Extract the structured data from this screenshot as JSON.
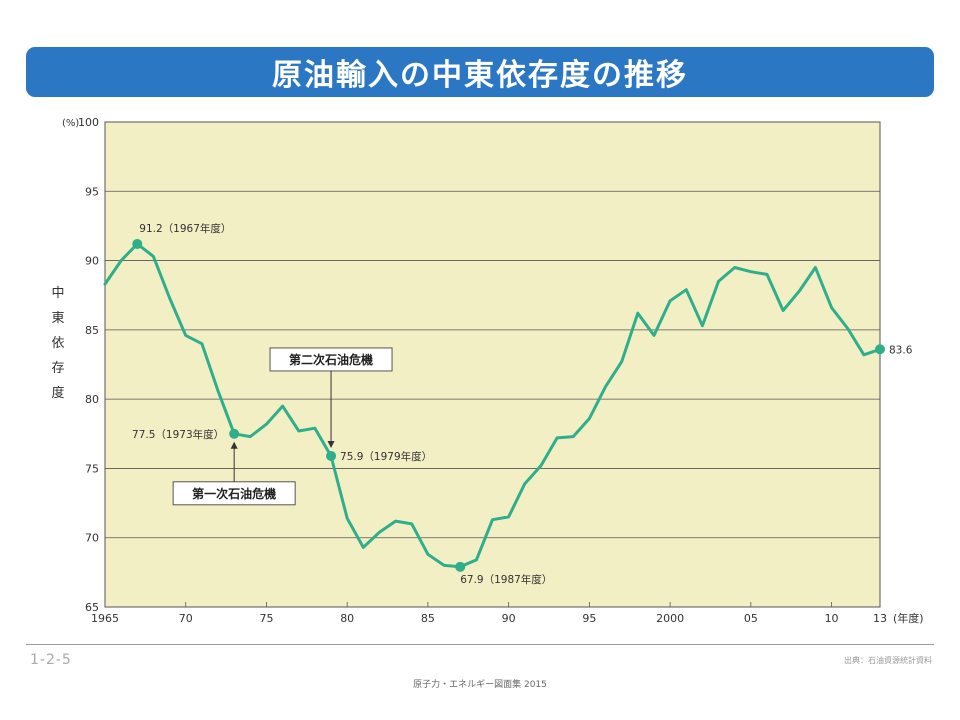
{
  "page": {
    "title": "原油輸入の中東依存度の推移",
    "figure_number": "1-2-5",
    "source_note": "出典：石油資源統計資料",
    "footer_caption": "原子力・エネルギー図面集 2015",
    "banner_color": "#2b77c4"
  },
  "chart_data": {
    "type": "line",
    "title": "原油輸入の中東依存度の推移",
    "ylabel": "中東依存度",
    "y_unit": "(%)",
    "x_unit": "(年度)",
    "ylim": [
      65,
      100
    ],
    "xlim": [
      1965,
      2013
    ],
    "yticks": [
      65,
      70,
      75,
      80,
      85,
      90,
      95,
      100
    ],
    "xticks": [
      {
        "year": 1965,
        "label": "1965"
      },
      {
        "year": 1970,
        "label": "70"
      },
      {
        "year": 1975,
        "label": "75"
      },
      {
        "year": 1980,
        "label": "80"
      },
      {
        "year": 1985,
        "label": "85"
      },
      {
        "year": 1990,
        "label": "90"
      },
      {
        "year": 1995,
        "label": "95"
      },
      {
        "year": 2000,
        "label": "2000"
      },
      {
        "year": 2005,
        "label": "05"
      },
      {
        "year": 2010,
        "label": "10"
      },
      {
        "year": 2013,
        "label": "13"
      }
    ],
    "grid": "horizontal",
    "colors": {
      "line": "#2fae8b",
      "plot_bg": "#f3efc4",
      "grid": "#555555"
    },
    "series": [
      {
        "x": [
          1965,
          1966,
          1967,
          1968,
          1969,
          1970,
          1971,
          1972,
          1973,
          1974,
          1975,
          1976,
          1977,
          1978,
          1979,
          1980,
          1981,
          1982,
          1983,
          1984,
          1985,
          1986,
          1987,
          1988,
          1989,
          1990,
          1991,
          1992,
          1993,
          1994,
          1995,
          1996,
          1997,
          1998,
          1999,
          2000,
          2001,
          2002,
          2003,
          2004,
          2005,
          2006,
          2007,
          2008,
          2009,
          2010,
          2011,
          2012,
          2013
        ],
        "values": [
          88.3,
          90.0,
          91.2,
          90.3,
          87.3,
          84.6,
          84.0,
          80.6,
          77.5,
          77.3,
          78.2,
          79.5,
          77.7,
          77.9,
          75.9,
          71.4,
          69.3,
          70.4,
          71.2,
          71.0,
          68.8,
          68.0,
          67.9,
          68.4,
          71.3,
          71.5,
          73.9,
          75.2,
          77.2,
          77.3,
          78.6,
          80.9,
          82.7,
          86.2,
          84.6,
          87.1,
          87.9,
          85.3,
          88.5,
          89.5,
          89.2,
          89.0,
          86.4,
          87.8,
          89.5,
          86.6,
          85.1,
          83.2,
          83.6
        ]
      }
    ],
    "markers": [
      {
        "year": 1967,
        "value": 91.2,
        "label": "91.2（1967年度）"
      },
      {
        "year": 1973,
        "value": 77.5,
        "label": "77.5（1973年度）"
      },
      {
        "year": 1979,
        "value": 75.9,
        "label": "75.9（1979年度）"
      },
      {
        "year": 1987,
        "value": 67.9,
        "label": "67.9（1987年度）"
      },
      {
        "year": 2013,
        "value": 83.6,
        "label": "83.6"
      }
    ],
    "callouts": [
      {
        "label": "第一次石油危機",
        "year": 1973
      },
      {
        "label": "第二次石油危機",
        "year": 1979
      }
    ]
  }
}
